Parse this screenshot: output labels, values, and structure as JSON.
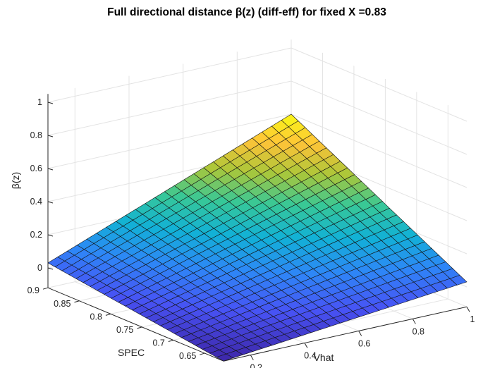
{
  "chart_data": {
    "type": "surface",
    "title": "Full directional distance β(z) (diff-eff) for fixed X =0.83",
    "xlabel": "Vhat",
    "ylabel": "SPEC",
    "zlabel": "β(z)",
    "xlim": [
      0.1,
      1.0
    ],
    "ylim": [
      0.62,
      0.9
    ],
    "zlim": [
      0,
      1.05
    ],
    "xticks": [
      "0.2",
      "0.4",
      "0.6",
      "0.8",
      "1"
    ],
    "yticks": [
      "0.65",
      "0.7",
      "0.75",
      "0.8",
      "0.85",
      "0.9"
    ],
    "zticks": [
      "0",
      "0.2",
      "0.4",
      "0.6",
      "0.8",
      "1"
    ],
    "grid": true,
    "colormap": "parula",
    "grid_size": [
      25,
      25
    ],
    "surface_model": {
      "description": "beta increases linearly with Vhat and decreases with SPEC",
      "corners": [
        {
          "Vhat": 0.1,
          "SPEC": 0.62,
          "beta": -0.12
        },
        {
          "Vhat": 1.0,
          "SPEC": 0.62,
          "beta": 0.03
        },
        {
          "Vhat": 0.1,
          "SPEC": 0.9,
          "beta": 0.03
        },
        {
          "Vhat": 1.0,
          "SPEC": 0.9,
          "beta": 0.6
        }
      ]
    }
  }
}
